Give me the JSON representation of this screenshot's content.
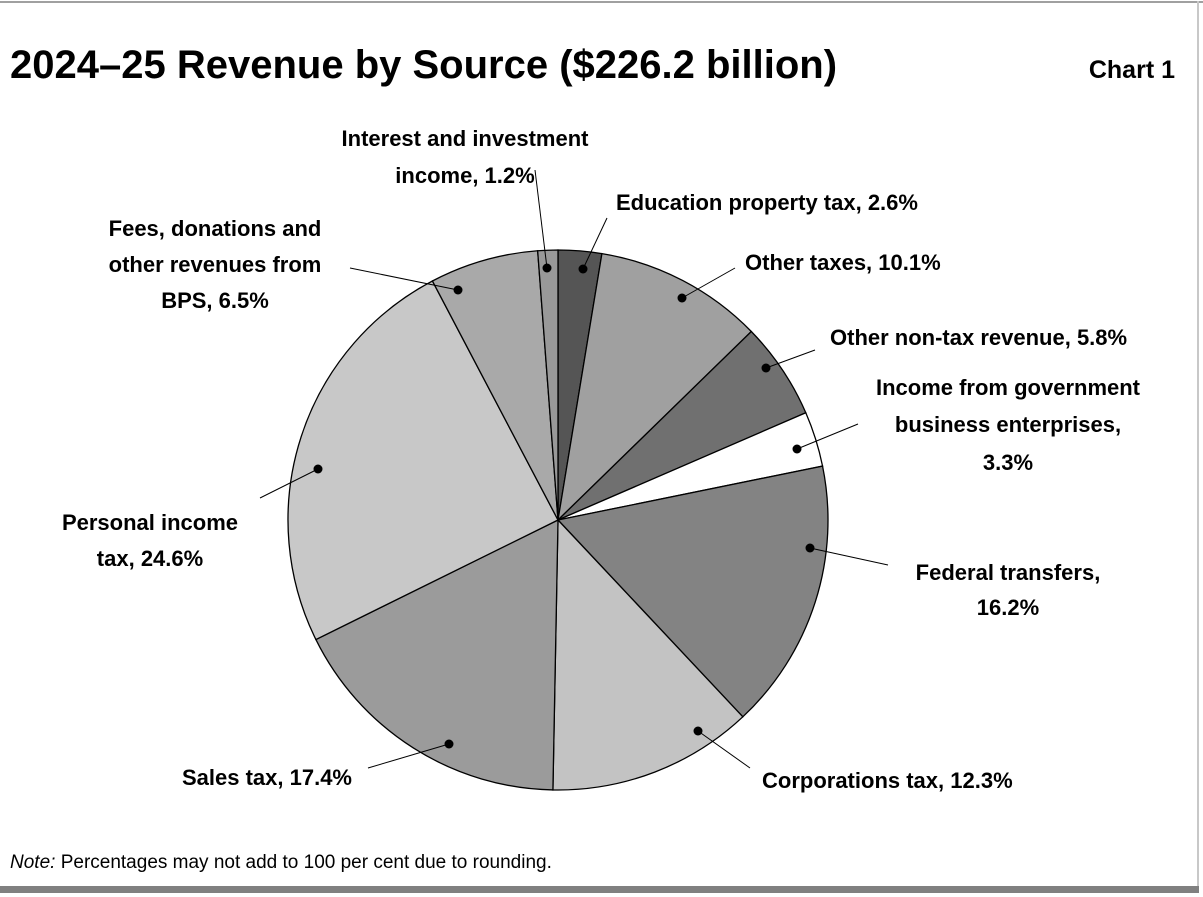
{
  "chart_data": {
    "type": "pie",
    "title": "2024–25 Revenue by Source ($226.2 billion)",
    "chart_number": "Chart 1",
    "note_label": "Note:",
    "note_text": " Percentages may not add to 100 per cent due to rounding.",
    "start_angle": "12 o'clock",
    "direction": "clockwise",
    "slices": [
      {
        "name": "Education property tax",
        "value": 2.6,
        "label_lines": [
          "Education property tax, 2.6%"
        ],
        "color": "#555555"
      },
      {
        "name": "Other taxes",
        "value": 10.1,
        "label_lines": [
          "Other taxes, 10.1%"
        ],
        "color": "#a0a0a0"
      },
      {
        "name": "Other non-tax revenue",
        "value": 5.8,
        "label_lines": [
          "Other non-tax revenue, 5.8%"
        ],
        "color": "#707070"
      },
      {
        "name": "Income from government business enterprises",
        "value": 3.3,
        "label_lines": [
          "Income from government",
          "business enterprises,",
          "3.3%"
        ],
        "color": "#ffffff"
      },
      {
        "name": "Federal transfers",
        "value": 16.2,
        "label_lines": [
          "Federal transfers,",
          "16.2%"
        ],
        "color": "#838383"
      },
      {
        "name": "Corporations tax",
        "value": 12.3,
        "label_lines": [
          "Corporations tax, 12.3%"
        ],
        "color": "#c3c3c3"
      },
      {
        "name": "Sales tax",
        "value": 17.4,
        "label_lines": [
          "Sales tax, 17.4%"
        ],
        "color": "#9b9b9b"
      },
      {
        "name": "Personal income tax",
        "value": 24.6,
        "label_lines": [
          "Personal income",
          "tax, 24.6%"
        ],
        "color": "#c8c8c8"
      },
      {
        "name": "Fees, donations and other revenues from BPS",
        "value": 6.5,
        "label_lines": [
          "Fees, donations and",
          "other revenues from",
          "BPS, 6.5%"
        ],
        "color": "#a9a9a9"
      },
      {
        "name": "Interest and investment income",
        "value": 1.2,
        "label_lines": [
          "Interest and investment",
          "income, 1.2%"
        ],
        "color": "#999999"
      }
    ]
  }
}
